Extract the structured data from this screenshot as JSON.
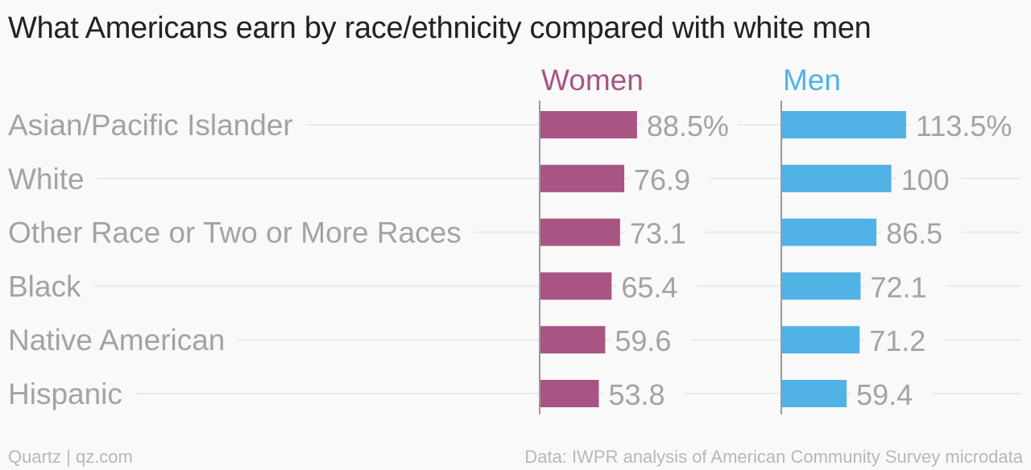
{
  "header": {
    "title": "What Americans earn by race/ethnicity compared with white men"
  },
  "footer": {
    "credit": "Quartz | qz.com",
    "source": "Data: IWPR analysis of American Community Survey microdata"
  },
  "chart_data": {
    "type": "bar",
    "orientation": "horizontal",
    "layout": "small-multiples",
    "categories": [
      "Asian/Pacific Islander",
      "White",
      "Other Race or Two or More Races",
      "Black",
      "Native American",
      "Hispanic"
    ],
    "series": [
      {
        "name": "Women",
        "color": "#a85583",
        "values": [
          88.5,
          76.9,
          73.1,
          65.4,
          59.6,
          53.8
        ],
        "labels": [
          "88.5%",
          "76.9",
          "73.1",
          "65.4",
          "59.6",
          "53.8"
        ]
      },
      {
        "name": "Men",
        "color": "#51b2e5",
        "values": [
          113.5,
          100,
          86.5,
          72.1,
          71.2,
          59.4
        ],
        "labels": [
          "113.5%",
          "100",
          "86.5",
          "72.1",
          "71.2",
          "59.4"
        ]
      }
    ],
    "xlim": [
      0,
      113.5
    ],
    "grid": false
  }
}
